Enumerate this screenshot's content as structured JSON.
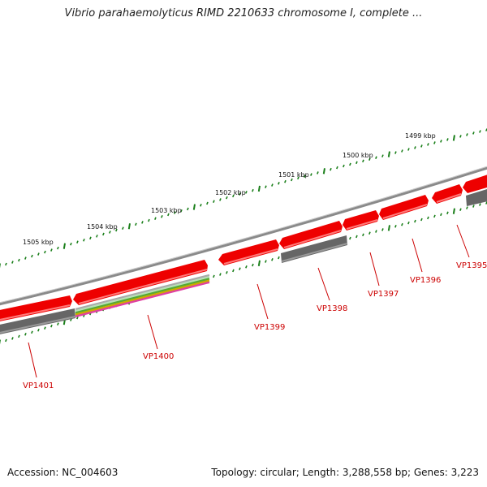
{
  "header": {
    "title": "Vibrio parahaemolyticus RIMD 2210633 chromosome I, complete ..."
  },
  "footer": {
    "accession": "Accession: NC_004603",
    "topology": "Topology: circular; Length: 3,288,558 bp; Genes: 3,223"
  },
  "colors": {
    "backbone": "#8a8a8a",
    "gene_forward": "#ee0000",
    "gene_reverse": "#666666",
    "tick": "#1a7f1a",
    "label": "#cc0000",
    "domain_stripes": [
      "#aaaaaa",
      "#b8e0b8",
      "#55aa33",
      "#ccaa00",
      "#e040a0"
    ]
  },
  "ruler": {
    "labels": [
      "1505 kbp",
      "1504 kbp",
      "1503 kbp",
      "1502 kbp",
      "1501 kbp",
      "1500 kbp",
      "1499 kbp"
    ]
  },
  "genes": [
    {
      "label": "VP1401"
    },
    {
      "label": "VP1400"
    },
    {
      "label": "VP1399"
    },
    {
      "label": "VP1398"
    },
    {
      "label": "VP1397"
    },
    {
      "label": "VP1396"
    },
    {
      "label": "VP1395"
    }
  ]
}
